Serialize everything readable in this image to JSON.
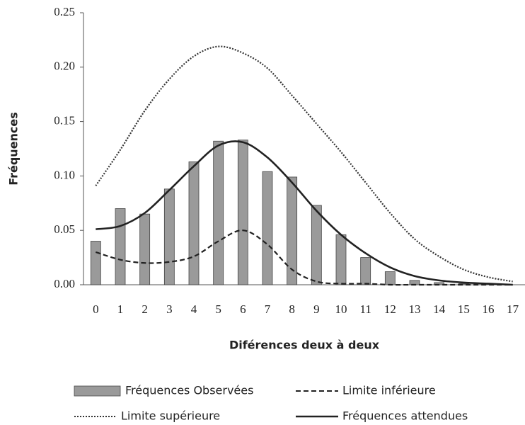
{
  "chart_data": {
    "type": "combo",
    "xlabel": "Diférences deux à deux",
    "ylabel": "Fréquences",
    "categories": [
      "0",
      "1",
      "2",
      "3",
      "4",
      "5",
      "6",
      "7",
      "8",
      "9",
      "10",
      "11",
      "12",
      "13",
      "14",
      "15",
      "16",
      "17"
    ],
    "ylim": [
      0,
      0.25
    ],
    "yticks": [
      {
        "value": 0,
        "label": "0.00"
      },
      0.05,
      {
        "value": 0.1,
        "label": "0.10"
      },
      0.15,
      {
        "value": 0.2,
        "label": "0.20"
      },
      0.25
    ],
    "legend": "bottom",
    "series": [
      {
        "name": "Fréquences Observées",
        "kind": "bar",
        "color": "#9a9a9a",
        "values": [
          0.04,
          0.07,
          0.065,
          0.088,
          0.113,
          0.132,
          0.133,
          0.104,
          0.099,
          0.073,
          0.046,
          0.025,
          0.012,
          0.004,
          0.002,
          0.001,
          0,
          0
        ]
      },
      {
        "name": "Limite inférieure",
        "kind": "line",
        "style": "dashed",
        "color": "#222222",
        "values": [
          0.03,
          0.023,
          0.02,
          0.021,
          0.026,
          0.04,
          0.05,
          0.037,
          0.014,
          0.003,
          0.001,
          0.001,
          0,
          0,
          0,
          0,
          0,
          0
        ]
      },
      {
        "name": "Limite supérieure",
        "kind": "line",
        "style": "dotted",
        "color": "#333333",
        "values": [
          0.091,
          0.124,
          0.16,
          0.189,
          0.21,
          0.219,
          0.213,
          0.199,
          0.174,
          0.148,
          0.122,
          0.094,
          0.066,
          0.042,
          0.026,
          0.014,
          0.007,
          0.003
        ]
      },
      {
        "name": "Fréquences attendues",
        "kind": "line",
        "style": "solid",
        "color": "#222222",
        "values": [
          0.051,
          0.054,
          0.066,
          0.087,
          0.109,
          0.128,
          0.131,
          0.117,
          0.094,
          0.068,
          0.046,
          0.029,
          0.016,
          0.008,
          0.004,
          0.002,
          0.001,
          0
        ]
      }
    ]
  }
}
